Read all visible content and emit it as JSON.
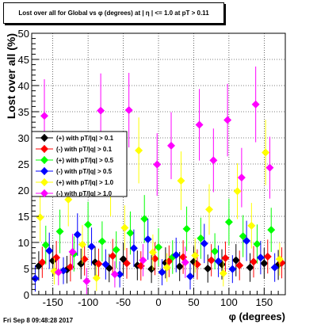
{
  "chart_data": {
    "type": "scatter",
    "title": "Lost over all for Global vs φ (degrees) at | η | <= 1.0 at pT > 0.11",
    "xlabel": "φ (degrees)",
    "ylabel": "Lost over all (%)",
    "xlim": [
      -180,
      180
    ],
    "ylim": [
      0,
      50
    ],
    "xticks": [
      -150,
      -100,
      -50,
      0,
      50,
      100,
      150
    ],
    "yticks": [
      0,
      5,
      10,
      15,
      20,
      25,
      30,
      35,
      40,
      45,
      50
    ],
    "grid": true,
    "legend_position": "left",
    "series": [
      {
        "name": "(+) with pT/|q| > 0.1",
        "color": "#000000",
        "x": [
          -170,
          -150,
          -130,
          -110,
          -90,
          -70,
          -50,
          -30,
          -10,
          10,
          30,
          50,
          70,
          90,
          110,
          130,
          150,
          170
        ],
        "y": [
          5.5,
          6.5,
          4.8,
          5.9,
          6.2,
          5.1,
          6.8,
          5.6,
          4.9,
          6.1,
          5.4,
          6.3,
          5.0,
          5.8,
          6.6,
          5.2,
          6.0,
          5.7
        ]
      },
      {
        "name": "(-) with pT/|q| > 0.1",
        "color": "#ff0000",
        "x": [
          -165,
          -145,
          -125,
          -105,
          -85,
          -65,
          -45,
          -25,
          -5,
          15,
          35,
          55,
          75,
          95,
          115,
          135,
          155,
          175
        ],
        "y": [
          6.2,
          7.1,
          5.3,
          6.8,
          5.9,
          7.4,
          6.0,
          5.5,
          6.9,
          6.4,
          7.2,
          5.8,
          6.6,
          7.0,
          5.6,
          6.3,
          7.3,
          6.1
        ]
      },
      {
        "name": "(+) with pT/|q| > 0.5",
        "color": "#00ff00",
        "x": [
          -160,
          -140,
          -120,
          -100,
          -80,
          -60,
          -40,
          -20,
          0,
          20,
          40,
          60,
          80,
          100,
          120,
          140,
          160
        ],
        "y": [
          9.5,
          12.1,
          7.8,
          13.4,
          10.2,
          8.6,
          11.8,
          14.5,
          9.1,
          7.2,
          12.6,
          10.8,
          8.3,
          13.9,
          11.2,
          9.7,
          12.4
        ]
      },
      {
        "name": "(-) with pT/|q| > 0.5",
        "color": "#0000ff",
        "x": [
          -175,
          -155,
          -135,
          -115,
          -95,
          -75,
          -55,
          -35,
          -15,
          5,
          25,
          45,
          65,
          85,
          105,
          125,
          145,
          165
        ],
        "y": [
          3.1,
          8.4,
          4.6,
          11.5,
          9.2,
          5.8,
          3.9,
          8.9,
          10.6,
          4.3,
          7.6,
          3.5,
          9.8,
          6.4,
          4.9,
          10.3,
          7.1,
          5.2
        ]
      },
      {
        "name": "(+) with pT/|q| > 1.0",
        "color": "#ffff00",
        "x": [
          -168,
          -148,
          -128,
          -108,
          -88,
          -68,
          -48,
          -28,
          -8,
          12,
          32,
          52,
          72,
          92,
          112,
          132,
          152,
          172
        ],
        "y": [
          14.8,
          4.5,
          18.2,
          9.6,
          3.2,
          20.4,
          12.8,
          27.6,
          8.1,
          5.2,
          21.8,
          7.5,
          16.3,
          4.1,
          19.8,
          13.2,
          27.2,
          6.8
        ]
      },
      {
        "name": "(-) with pT/|q| > 1.0",
        "color": "#ff00ff",
        "x": [
          -162,
          -142,
          -122,
          -102,
          -82,
          -62,
          -42,
          -22,
          -2,
          18,
          38,
          58,
          78,
          98,
          118,
          138,
          158
        ],
        "y": [
          34.2,
          4.3,
          8.2,
          2.6,
          35.2,
          3.9,
          35.3,
          6.6,
          24.9,
          28.5,
          6.2,
          32.5,
          25.7,
          33.4,
          22.4,
          36.4,
          24.3
        ]
      }
    ]
  },
  "footer": {
    "timestamp": "Fri Sep  8 09:48:28 2017"
  }
}
